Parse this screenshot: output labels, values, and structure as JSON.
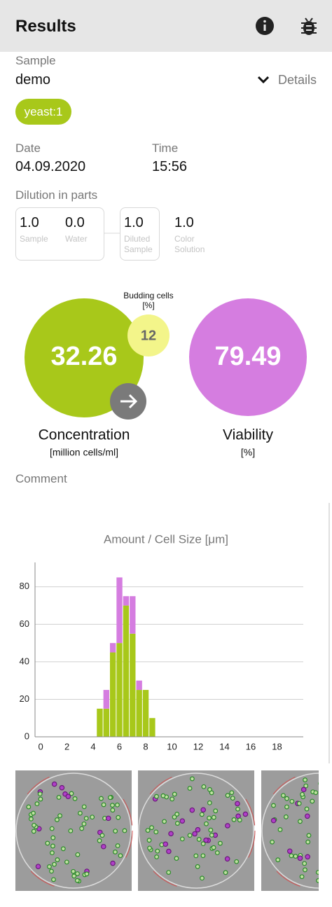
{
  "header": {
    "title": "Results"
  },
  "sample": {
    "label": "Sample",
    "value": "demo",
    "details": "Details",
    "chip": "yeast:1"
  },
  "date": {
    "label": "Date",
    "value": "04.09.2020"
  },
  "time": {
    "label": "Time",
    "value": "15:56"
  },
  "dilution": {
    "label": "Dilution in parts",
    "parts": [
      {
        "value": "1.0",
        "label": "Sample"
      },
      {
        "value": "0.0",
        "label": "Water"
      },
      {
        "value": "1.0",
        "label": "Diluted Sample"
      },
      {
        "value": "1.0",
        "label": "Color Solution"
      }
    ]
  },
  "metrics": {
    "concentration": {
      "value": "32.26",
      "label": "Concentration",
      "unit": "[million cells/ml]"
    },
    "budding": {
      "label": "Budding cells",
      "unit": "[%]",
      "value": "12"
    },
    "viability": {
      "value": "79.49",
      "label": "Viability",
      "unit": "[%]"
    }
  },
  "comment": {
    "label": "Comment"
  },
  "chart_data": {
    "type": "histogram",
    "title": "Amount / Cell Size [μm]",
    "bins": [
      4.25,
      4.75,
      5.25,
      5.75,
      6.25,
      6.75,
      7.25,
      7.75,
      8.25,
      8.75
    ],
    "series": [
      {
        "color": "#a8c81a",
        "values": [
          15,
          15,
          45,
          50,
          70,
          55,
          25,
          25,
          10
        ]
      },
      {
        "color": "#d57de0",
        "values": [
          0,
          10,
          5,
          35,
          5,
          20,
          5,
          0,
          0
        ]
      }
    ],
    "stacked": true,
    "xlim": [
      -0.43,
      20
    ],
    "xticks": [
      0,
      2,
      4,
      6,
      8,
      10,
      12,
      14,
      16,
      18
    ],
    "ylim": [
      0,
      93
    ],
    "yticks": [
      0,
      20,
      40,
      60,
      80
    ],
    "grid": true
  }
}
